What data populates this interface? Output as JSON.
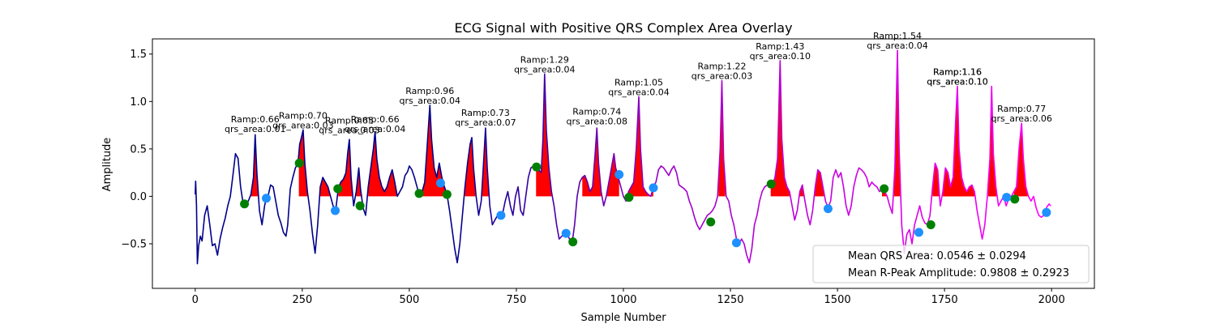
{
  "chart_data": {
    "type": "line",
    "title": "ECG Signal with Positive QRS Complex Area Overlay",
    "xlabel": "Sample Number",
    "ylabel": "Amplitude",
    "xlim": [
      -100,
      2100
    ],
    "ylim": [
      -0.97,
      1.66
    ],
    "xticks": [
      0,
      250,
      500,
      750,
      1000,
      1250,
      1500,
      1750,
      2000
    ],
    "yticks": [
      -0.5,
      0.0,
      0.5,
      1.0,
      1.5
    ],
    "ytick_labels": [
      "−0.5",
      "0.0",
      "0.5",
      "1.0",
      "1.5"
    ],
    "grid": false,
    "colors": {
      "signal_start": "#00008b",
      "signal_end": "#ff00ff",
      "qrs_area": "#ff0000",
      "onset_marker": "#008000",
      "offset_marker": "#1e90ff"
    },
    "signal_points": [
      [
        0,
        0.02
      ],
      [
        1,
        0.16
      ],
      [
        3,
        -0.1
      ],
      [
        5,
        -0.71
      ],
      [
        8,
        -0.52
      ],
      [
        12,
        -0.42
      ],
      [
        16,
        -0.47
      ],
      [
        22,
        -0.2
      ],
      [
        28,
        -0.1
      ],
      [
        34,
        -0.3
      ],
      [
        40,
        -0.52
      ],
      [
        46,
        -0.5
      ],
      [
        52,
        -0.62
      ],
      [
        58,
        -0.45
      ],
      [
        64,
        -0.33
      ],
      [
        70,
        -0.23
      ],
      [
        76,
        -0.1
      ],
      [
        82,
        0.0
      ],
      [
        88,
        0.22
      ],
      [
        94,
        0.45
      ],
      [
        100,
        0.4
      ],
      [
        106,
        0.1
      ],
      [
        112,
        -0.08
      ],
      [
        118,
        -0.1
      ],
      [
        124,
        -0.05
      ],
      [
        130,
        0.02
      ],
      [
        136,
        0.2
      ],
      [
        140,
        0.65
      ],
      [
        144,
        0.25
      ],
      [
        150,
        -0.15
      ],
      [
        156,
        -0.3
      ],
      [
        162,
        -0.1
      ],
      [
        166,
        -0.02
      ],
      [
        170,
        0.0
      ],
      [
        176,
        0.12
      ],
      [
        182,
        0.1
      ],
      [
        188,
        -0.05
      ],
      [
        194,
        -0.2
      ],
      [
        200,
        -0.28
      ],
      [
        206,
        -0.38
      ],
      [
        212,
        -0.42
      ],
      [
        216,
        -0.3
      ],
      [
        222,
        0.08
      ],
      [
        228,
        0.2
      ],
      [
        234,
        0.3
      ],
      [
        240,
        0.35
      ],
      [
        244,
        0.55
      ],
      [
        248,
        0.62
      ],
      [
        252,
        0.7
      ],
      [
        256,
        0.35
      ],
      [
        262,
        0.05
      ],
      [
        268,
        -0.15
      ],
      [
        274,
        -0.4
      ],
      [
        280,
        -0.6
      ],
      [
        286,
        -0.3
      ],
      [
        292,
        0.1
      ],
      [
        298,
        0.2
      ],
      [
        304,
        0.15
      ],
      [
        310,
        0.1
      ],
      [
        316,
        0.0
      ],
      [
        322,
        -0.1
      ],
      [
        328,
        -0.15
      ],
      [
        334,
        0.08
      ],
      [
        340,
        0.15
      ],
      [
        346,
        0.18
      ],
      [
        352,
        0.25
      ],
      [
        356,
        0.45
      ],
      [
        360,
        0.6
      ],
      [
        364,
        0.2
      ],
      [
        370,
        -0.1
      ],
      [
        376,
        0.05
      ],
      [
        382,
        0.3
      ],
      [
        386,
        0.08
      ],
      [
        392,
        -0.12
      ],
      [
        398,
        -0.2
      ],
      [
        404,
        0.1
      ],
      [
        410,
        0.3
      ],
      [
        416,
        0.5
      ],
      [
        420,
        0.68
      ],
      [
        424,
        0.4
      ],
      [
        430,
        0.2
      ],
      [
        436,
        0.1
      ],
      [
        442,
        0.05
      ],
      [
        448,
        0.1
      ],
      [
        454,
        0.2
      ],
      [
        460,
        0.28
      ],
      [
        466,
        0.15
      ],
      [
        472,
        0.0
      ],
      [
        478,
        0.05
      ],
      [
        484,
        0.1
      ],
      [
        490,
        0.22
      ],
      [
        496,
        0.26
      ],
      [
        500,
        0.32
      ],
      [
        506,
        0.28
      ],
      [
        512,
        0.2
      ],
      [
        518,
        0.1
      ],
      [
        524,
        0.0
      ],
      [
        530,
        0.05
      ],
      [
        536,
        0.15
      ],
      [
        542,
        0.55
      ],
      [
        548,
        0.96
      ],
      [
        552,
        0.6
      ],
      [
        558,
        0.3
      ],
      [
        564,
        0.2
      ],
      [
        570,
        0.35
      ],
      [
        576,
        0.2
      ],
      [
        582,
        0.1
      ],
      [
        588,
        0.02
      ],
      [
        594,
        -0.15
      ],
      [
        600,
        -0.35
      ],
      [
        606,
        -0.55
      ],
      [
        612,
        -0.7
      ],
      [
        618,
        -0.5
      ],
      [
        624,
        -0.2
      ],
      [
        630,
        0.1
      ],
      [
        636,
        0.35
      ],
      [
        642,
        0.55
      ],
      [
        646,
        0.62
      ],
      [
        650,
        0.3
      ],
      [
        656,
        0.0
      ],
      [
        662,
        -0.2
      ],
      [
        668,
        -0.05
      ],
      [
        674,
        0.4
      ],
      [
        678,
        0.72
      ],
      [
        682,
        0.3
      ],
      [
        688,
        -0.1
      ],
      [
        694,
        -0.3
      ],
      [
        700,
        -0.25
      ],
      [
        706,
        -0.2
      ],
      [
        712,
        -0.22
      ],
      [
        718,
        -0.18
      ],
      [
        724,
        -0.05
      ],
      [
        730,
        0.05
      ],
      [
        736,
        -0.1
      ],
      [
        742,
        -0.2
      ],
      [
        748,
        0.0
      ],
      [
        754,
        0.1
      ],
      [
        760,
        -0.15
      ],
      [
        766,
        -0.2
      ],
      [
        772,
        0.0
      ],
      [
        778,
        0.2
      ],
      [
        784,
        0.3
      ],
      [
        790,
        0.32
      ],
      [
        796,
        0.3
      ],
      [
        802,
        0.28
      ],
      [
        808,
        0.25
      ],
      [
        812,
        0.6
      ],
      [
        816,
        1.29
      ],
      [
        820,
        0.7
      ],
      [
        826,
        0.3
      ],
      [
        832,
        0.05
      ],
      [
        838,
        -0.1
      ],
      [
        844,
        -0.3
      ],
      [
        850,
        -0.45
      ],
      [
        856,
        -0.42
      ],
      [
        862,
        -0.4
      ],
      [
        868,
        -0.38
      ],
      [
        874,
        -0.45
      ],
      [
        880,
        -0.5
      ],
      [
        886,
        -0.3
      ],
      [
        892,
        0.0
      ],
      [
        898,
        0.15
      ],
      [
        904,
        0.2
      ],
      [
        910,
        0.22
      ],
      [
        916,
        0.15
      ],
      [
        922,
        0.05
      ],
      [
        928,
        0.1
      ],
      [
        934,
        0.45
      ],
      [
        938,
        0.72
      ],
      [
        942,
        0.35
      ],
      [
        948,
        0.05
      ],
      [
        954,
        -0.1
      ],
      [
        960,
        0.0
      ],
      [
        966,
        0.15
      ],
      [
        972,
        0.3
      ],
      [
        978,
        0.45
      ],
      [
        982,
        0.3
      ],
      [
        988,
        0.2
      ],
      [
        994,
        0.1
      ],
      [
        1000,
        0.0
      ],
      [
        1006,
        -0.05
      ],
      [
        1012,
        0.05
      ],
      [
        1018,
        0.1
      ],
      [
        1024,
        0.15
      ],
      [
        1030,
        0.5
      ],
      [
        1036,
        1.05
      ],
      [
        1040,
        0.5
      ],
      [
        1046,
        0.1
      ],
      [
        1052,
        0.05
      ],
      [
        1058,
        0.02
      ],
      [
        1064,
        0.0
      ],
      [
        1070,
        0.1
      ],
      [
        1076,
        0.15
      ],
      [
        1082,
        0.28
      ],
      [
        1088,
        0.32
      ],
      [
        1094,
        0.3
      ],
      [
        1100,
        0.26
      ],
      [
        1106,
        0.22
      ],
      [
        1112,
        0.28
      ],
      [
        1118,
        0.32
      ],
      [
        1124,
        0.25
      ],
      [
        1130,
        0.12
      ],
      [
        1136,
        0.1
      ],
      [
        1142,
        0.08
      ],
      [
        1148,
        0.05
      ],
      [
        1154,
        -0.05
      ],
      [
        1160,
        -0.12
      ],
      [
        1166,
        -0.22
      ],
      [
        1172,
        -0.3
      ],
      [
        1178,
        -0.35
      ],
      [
        1184,
        -0.3
      ],
      [
        1190,
        -0.25
      ],
      [
        1196,
        -0.2
      ],
      [
        1202,
        -0.18
      ],
      [
        1208,
        -0.15
      ],
      [
        1214,
        -0.1
      ],
      [
        1220,
        0.0
      ],
      [
        1226,
        0.5
      ],
      [
        1230,
        1.22
      ],
      [
        1234,
        0.4
      ],
      [
        1240,
        0.0
      ],
      [
        1246,
        -0.05
      ],
      [
        1252,
        -0.2
      ],
      [
        1258,
        -0.3
      ],
      [
        1264,
        -0.45
      ],
      [
        1270,
        -0.5
      ],
      [
        1276,
        -0.45
      ],
      [
        1282,
        -0.5
      ],
      [
        1288,
        -0.62
      ],
      [
        1294,
        -0.7
      ],
      [
        1300,
        -0.55
      ],
      [
        1306,
        -0.3
      ],
      [
        1312,
        -0.2
      ],
      [
        1318,
        -0.05
      ],
      [
        1324,
        0.05
      ],
      [
        1330,
        0.1
      ],
      [
        1336,
        0.12
      ],
      [
        1342,
        0.1
      ],
      [
        1348,
        0.12
      ],
      [
        1354,
        0.2
      ],
      [
        1360,
        0.4
      ],
      [
        1366,
        1.43
      ],
      [
        1370,
        0.6
      ],
      [
        1376,
        0.2
      ],
      [
        1382,
        0.1
      ],
      [
        1388,
        0.05
      ],
      [
        1394,
        -0.1
      ],
      [
        1400,
        -0.25
      ],
      [
        1406,
        -0.15
      ],
      [
        1412,
        0.05
      ],
      [
        1418,
        0.12
      ],
      [
        1424,
        -0.05
      ],
      [
        1430,
        -0.2
      ],
      [
        1436,
        -0.3
      ],
      [
        1442,
        -0.15
      ],
      [
        1448,
        0.1
      ],
      [
        1454,
        0.28
      ],
      [
        1460,
        0.25
      ],
      [
        1466,
        0.1
      ],
      [
        1472,
        -0.05
      ],
      [
        1478,
        -0.12
      ],
      [
        1484,
        -0.05
      ],
      [
        1490,
        0.2
      ],
      [
        1496,
        0.28
      ],
      [
        1502,
        0.2
      ],
      [
        1508,
        0.25
      ],
      [
        1514,
        0.1
      ],
      [
        1520,
        -0.1
      ],
      [
        1526,
        -0.2
      ],
      [
        1532,
        -0.1
      ],
      [
        1538,
        0.1
      ],
      [
        1544,
        0.22
      ],
      [
        1550,
        0.3
      ],
      [
        1556,
        0.28
      ],
      [
        1562,
        0.25
      ],
      [
        1568,
        0.2
      ],
      [
        1574,
        0.1
      ],
      [
        1580,
        0.15
      ],
      [
        1586,
        0.12
      ],
      [
        1592,
        0.1
      ],
      [
        1598,
        0.05
      ],
      [
        1604,
        0.08
      ],
      [
        1610,
        0.05
      ],
      [
        1616,
        0.0
      ],
      [
        1622,
        -0.1
      ],
      [
        1628,
        -0.18
      ],
      [
        1634,
        0.3
      ],
      [
        1640,
        1.54
      ],
      [
        1644,
        0.5
      ],
      [
        1650,
        -0.3
      ],
      [
        1656,
        -0.6
      ],
      [
        1662,
        -0.4
      ],
      [
        1668,
        -0.35
      ],
      [
        1674,
        -0.5
      ],
      [
        1680,
        -0.3
      ],
      [
        1686,
        -0.2
      ],
      [
        1692,
        -0.1
      ],
      [
        1698,
        -0.22
      ],
      [
        1704,
        -0.28
      ],
      [
        1710,
        -0.3
      ],
      [
        1716,
        -0.2
      ],
      [
        1722,
        0.1
      ],
      [
        1728,
        0.35
      ],
      [
        1734,
        0.28
      ],
      [
        1740,
        -0.1
      ],
      [
        1746,
        0.05
      ],
      [
        1752,
        0.3
      ],
      [
        1758,
        0.25
      ],
      [
        1764,
        0.1
      ],
      [
        1770,
        0.2
      ],
      [
        1776,
        0.8
      ],
      [
        1780,
        1.16
      ],
      [
        1784,
        0.5
      ],
      [
        1790,
        0.2
      ],
      [
        1796,
        0.1
      ],
      [
        1802,
        0.05
      ],
      [
        1808,
        0.1
      ],
      [
        1814,
        0.12
      ],
      [
        1820,
        0.05
      ],
      [
        1826,
        -0.15
      ],
      [
        1832,
        -0.3
      ],
      [
        1838,
        -0.45
      ],
      [
        1844,
        -0.3
      ],
      [
        1850,
        0.0
      ],
      [
        1856,
        0.4
      ],
      [
        1860,
        1.16
      ],
      [
        1864,
        0.45
      ],
      [
        1870,
        0.1
      ],
      [
        1876,
        -0.1
      ],
      [
        1882,
        -0.05
      ],
      [
        1888,
        0.0
      ],
      [
        1894,
        -0.1
      ],
      [
        1900,
        -0.02
      ],
      [
        1906,
        0.0
      ],
      [
        1912,
        0.05
      ],
      [
        1918,
        0.1
      ],
      [
        1924,
        0.5
      ],
      [
        1930,
        0.77
      ],
      [
        1934,
        0.4
      ],
      [
        1940,
        0.1
      ],
      [
        1946,
        0.0
      ],
      [
        1952,
        -0.05
      ],
      [
        1958,
        0.0
      ],
      [
        1964,
        -0.12
      ],
      [
        1970,
        -0.2
      ],
      [
        1976,
        -0.22
      ],
      [
        1982,
        -0.2
      ],
      [
        1988,
        -0.12
      ],
      [
        1994,
        -0.08
      ],
      [
        1998,
        -0.1
      ]
    ],
    "qrs_areas": [
      {
        "x0": 112,
        "x1": 166,
        "ramp": "0.66",
        "qrs_area": "0.01"
      },
      {
        "x0": 242,
        "x1": 328,
        "ramp": "0.70",
        "qrs_area": "0.03"
      },
      {
        "x0": 334,
        "x1": 392,
        "ramp": "0.65",
        "qrs_area": "0.03"
      },
      {
        "x0": 386,
        "x1": 470,
        "ramp": "0.66",
        "qrs_area": "0.04"
      },
      {
        "x0": 522,
        "x1": 588,
        "ramp": "0.96",
        "qrs_area": "0.04"
      },
      {
        "x0": 588,
        "x1": 712,
        "ramp": "0.73",
        "qrs_area": "0.07"
      },
      {
        "x0": 796,
        "x1": 862,
        "ramp": "1.29",
        "qrs_area": "0.04"
      },
      {
        "x0": 904,
        "x1": 990,
        "ramp": "0.74",
        "qrs_area": "0.08"
      },
      {
        "x0": 1012,
        "x1": 1070,
        "ramp": "1.05",
        "qrs_area": "0.04"
      },
      {
        "x0": 1206,
        "x1": 1264,
        "ramp": "1.22",
        "qrs_area": "0.03"
      },
      {
        "x0": 1344,
        "x1": 1478,
        "ramp": "1.43",
        "qrs_area": "0.10"
      },
      {
        "x0": 1604,
        "x1": 1710,
        "ramp": "1.54",
        "qrs_area": "0.04"
      },
      {
        "x0": 1720,
        "x1": 1896,
        "ramp": "1.16",
        "qrs_area": "0.10"
      },
      {
        "x0": 1740,
        "x1": 1896,
        "ramp": "1.16",
        "qrs_area": "0.10"
      },
      {
        "x0": 1912,
        "x1": 1988,
        "ramp": "0.77",
        "qrs_area": "0.06"
      }
    ],
    "onset_markers": [
      [
        115,
        -0.08
      ],
      [
        243,
        0.35
      ],
      [
        333,
        0.08
      ],
      [
        385,
        -0.1
      ],
      [
        523,
        0.03
      ],
      [
        588,
        0.02
      ],
      [
        797,
        0.31
      ],
      [
        882,
        -0.48
      ],
      [
        1013,
        -0.01
      ],
      [
        1204,
        -0.27
      ],
      [
        1345,
        0.13
      ],
      [
        1609,
        0.08
      ],
      [
        1718,
        -0.3
      ],
      [
        1914,
        -0.03
      ]
    ],
    "offset_markers": [
      [
        166,
        -0.02
      ],
      [
        327,
        -0.15
      ],
      [
        573,
        0.14
      ],
      [
        714,
        -0.2
      ],
      [
        866,
        -0.39
      ],
      [
        990,
        0.23
      ],
      [
        1070,
        0.09
      ],
      [
        1264,
        -0.49
      ],
      [
        1478,
        -0.13
      ],
      [
        1690,
        -0.38
      ],
      [
        1895,
        -0.01
      ],
      [
        1988,
        -0.17
      ]
    ],
    "annotation_prefix": {
      "ramp": "Ramp:",
      "qrs": "qrs_area:"
    },
    "legend": {
      "placement": "lower-right",
      "entries": [
        {
          "label": "Mean QRS Area: 0.0546 ± 0.0294"
        },
        {
          "label": "Mean R-Peak Amplitude: 0.9808 ± 0.2923"
        }
      ]
    }
  }
}
